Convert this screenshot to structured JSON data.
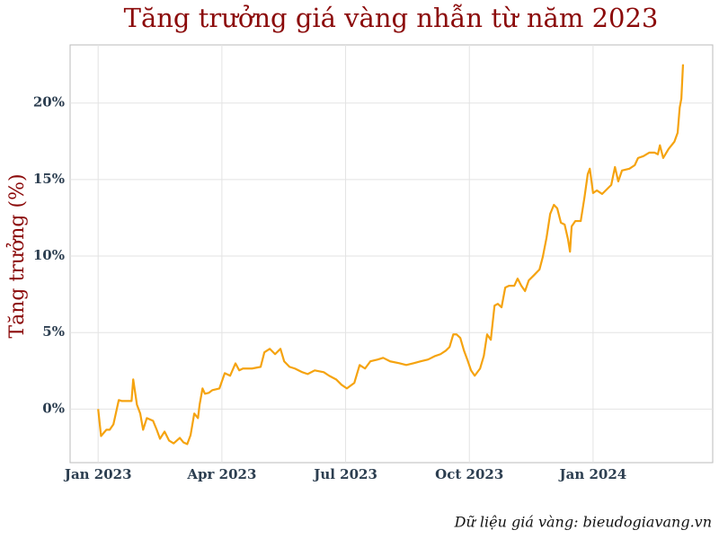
{
  "chart_data": {
    "type": "line",
    "title": "Tăng trưởng giá vàng nhẫn từ năm 2023",
    "y_label": "Tăng trưởng (%)",
    "caption": "Dữ liệu giá vàng: bieudogiavang.vn",
    "color": "#f5a30f",
    "grid": true,
    "xlim": [
      -0.68,
      14.9
    ],
    "xticks": [
      {
        "value": 0,
        "label": "Jan 2023"
      },
      {
        "value": 3,
        "label": "Apr 2023"
      },
      {
        "value": 6,
        "label": "Jul 2023"
      },
      {
        "value": 9,
        "label": "Oct 2023"
      },
      {
        "value": 12,
        "label": "Jan 2024"
      }
    ],
    "ylim": [
      -3.5,
      23.8
    ],
    "yticks": [
      {
        "value": 0,
        "label": "0%"
      },
      {
        "value": 5,
        "label": "5%"
      },
      {
        "value": 10,
        "label": "10%"
      },
      {
        "value": 15,
        "label": "15%"
      },
      {
        "value": 20,
        "label": "20%"
      }
    ],
    "x": [
      0,
      0.07,
      0.2,
      0.28,
      0.37,
      0.5,
      0.57,
      0.81,
      0.85,
      0.94,
      1.02,
      1.09,
      1.18,
      1.33,
      1.42,
      1.5,
      1.61,
      1.72,
      1.83,
      1.98,
      2.07,
      2.16,
      2.24,
      2.33,
      2.42,
      2.46,
      2.53,
      2.59,
      2.68,
      2.77,
      2.94,
      3.07,
      3.2,
      3.33,
      3.42,
      3.51,
      3.73,
      3.94,
      4.03,
      4.16,
      4.29,
      4.42,
      4.51,
      4.64,
      4.77,
      4.95,
      5.08,
      5.25,
      5.47,
      5.6,
      5.77,
      5.9,
      6.03,
      6.21,
      6.34,
      6.47,
      6.6,
      6.78,
      6.91,
      7.08,
      7.3,
      7.47,
      7.65,
      7.82,
      8,
      8.17,
      8.3,
      8.43,
      8.52,
      8.61,
      8.69,
      8.78,
      8.87,
      8.95,
      9.04,
      9.13,
      9.26,
      9.35,
      9.43,
      9.52,
      9.61,
      9.69,
      9.78,
      9.87,
      9.96,
      10.09,
      10.17,
      10.26,
      10.35,
      10.44,
      10.57,
      10.7,
      10.78,
      10.87,
      10.96,
      11.05,
      11.13,
      11.22,
      11.31,
      11.39,
      11.44,
      11.48,
      11.57,
      11.7,
      11.79,
      11.87,
      11.92,
      12,
      12.09,
      12.22,
      12.44,
      12.53,
      12.61,
      12.7,
      12.88,
      13.01,
      13.09,
      13.22,
      13.36,
      13.49,
      13.57,
      13.62,
      13.7,
      13.83,
      13.97,
      14.05,
      14.1,
      14.14,
      14.18
    ],
    "values": [
      0,
      -1.76,
      -1.35,
      -1.35,
      -1,
      0.59,
      0.53,
      0.53,
      1.94,
      0.29,
      -0.29,
      -1.35,
      -0.59,
      -0.76,
      -1.35,
      -1.94,
      -1.47,
      -2.06,
      -2.24,
      -1.88,
      -2.18,
      -2.29,
      -1.71,
      -0.29,
      -0.59,
      0.29,
      1.35,
      1,
      1.06,
      1.24,
      1.35,
      2.35,
      2.18,
      2.99,
      2.53,
      2.65,
      2.65,
      2.76,
      3.71,
      3.94,
      3.59,
      3.94,
      3.12,
      2.76,
      2.65,
      2.41,
      2.29,
      2.53,
      2.41,
      2.18,
      1.94,
      1.59,
      1.35,
      1.71,
      2.88,
      2.65,
      3.12,
      3.24,
      3.35,
      3.12,
      3,
      2.88,
      3,
      3.12,
      3.24,
      3.47,
      3.59,
      3.82,
      4.06,
      4.88,
      4.88,
      4.65,
      3.82,
      3.24,
      2.53,
      2.18,
      2.65,
      3.47,
      4.88,
      4.53,
      6.76,
      6.88,
      6.65,
      7.94,
      8.06,
      8.06,
      8.53,
      8.06,
      7.71,
      8.41,
      8.76,
      9.12,
      9.94,
      11.18,
      12.76,
      13.35,
      13.12,
      12.18,
      12.06,
      11.12,
      10.29,
      11.94,
      12.29,
      12.29,
      13.82,
      15.35,
      15.71,
      14.12,
      14.29,
      14.06,
      14.65,
      15.82,
      14.88,
      15.59,
      15.71,
      15.94,
      16.41,
      16.53,
      16.76,
      16.76,
      16.65,
      17.24,
      16.41,
      17,
      17.47,
      18.06,
      19.71,
      20.29,
      22.53
    ]
  }
}
